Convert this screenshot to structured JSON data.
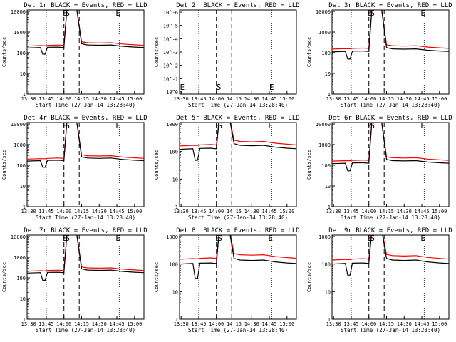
{
  "layout": {
    "rows": 3,
    "cols": 3
  },
  "common": {
    "xlabel": "Start Time (27-Jan-14 13:28:40)",
    "ylabel": "Counts/sec",
    "xticks": [
      "13:30",
      "13:45",
      "14:00",
      "14:15",
      "14:30",
      "14:45",
      "15:00"
    ],
    "marker_labels": [
      "E",
      "S",
      "E"
    ],
    "series": [
      {
        "name": "Events",
        "color": "#000000"
      },
      {
        "name": "LLD",
        "color": "#ff0000"
      }
    ]
  },
  "panels": [
    {
      "title": "Det 1r BLACK = Events, RED = LLD",
      "ylog_ticks": [
        "1",
        "10",
        "100",
        "1000",
        "10000"
      ],
      "has_data": true,
      "gap_depth": 0.5,
      "base_black": 170,
      "base_red": 210,
      "peak": 30000
    },
    {
      "title": "Det 2r BLACK = Events, RED = LLD",
      "ylog_ticks": [
        "10^0",
        "10^-1",
        "10^-2",
        "10^-3",
        "10^-4",
        "10^-5",
        "10^-6"
      ],
      "has_data": false
    },
    {
      "title": "Det 3r BLACK = Events, RED = LLD",
      "ylog_ticks": [
        "1",
        "10",
        "100",
        "1000",
        "10000"
      ],
      "has_data": true,
      "gap_depth": 0.45,
      "base_black": 110,
      "base_red": 150,
      "peak": 30000
    },
    {
      "title": "Det 4r BLACK = Events, RED = LLD",
      "ylog_ticks": [
        "1",
        "10",
        "100",
        "1000",
        "10000"
      ],
      "has_data": true,
      "gap_depth": 0.5,
      "base_black": 160,
      "base_red": 200,
      "peak": 30000
    },
    {
      "title": "Det 5r BLACK = Events, RED = LLD",
      "ylog_ticks": [
        "1",
        "10",
        "100",
        "1000"
      ],
      "has_data": true,
      "gap_depth": 0.4,
      "base_black": 120,
      "base_red": 160,
      "peak": 3000
    },
    {
      "title": "Det 6r BLACK = Events, RED = LLD",
      "ylog_ticks": [
        "1",
        "10",
        "100",
        "1000",
        "10000"
      ],
      "has_data": true,
      "gap_depth": 0.45,
      "base_black": 120,
      "base_red": 160,
      "peak": 30000
    },
    {
      "title": "Det 7r BLACK = Events, RED = LLD",
      "ylog_ticks": [
        "1",
        "10",
        "100",
        "1000",
        "10000"
      ],
      "has_data": true,
      "gap_depth": 0.45,
      "base_black": 170,
      "base_red": 210,
      "peak": 30000
    },
    {
      "title": "Det 8r BLACK = Events, RED = LLD",
      "ylog_ticks": [
        "1",
        "10",
        "100",
        "1000"
      ],
      "has_data": true,
      "gap_depth": 0.3,
      "base_black": 100,
      "base_red": 150,
      "peak": 3000
    },
    {
      "title": "Det 9r BLACK = Events, RED = LLD",
      "ylog_ticks": [
        "1",
        "10",
        "100",
        "1000"
      ],
      "has_data": true,
      "gap_depth": 0.4,
      "base_black": 100,
      "base_red": 140,
      "peak": 3000
    }
  ],
  "chart_data": {
    "type": "line",
    "x_unit": "time",
    "xlim": [
      "13:28:40",
      "15:08:00"
    ],
    "yscale": "log",
    "vertical_lines": {
      "dotted": [
        "13:45",
        "14:47"
      ],
      "dashed": [
        "14:00",
        "14:13"
      ]
    },
    "series_template": [
      {
        "name": "Events",
        "color": "#000000",
        "x": [
          "13:28:40",
          "13:40",
          "13:42",
          "13:44",
          "13:46",
          "13:55",
          "14:00",
          "14:03",
          "14:08",
          "14:10",
          "14:15",
          "14:20",
          "14:30",
          "14:40",
          "14:50",
          "15:00",
          "15:08"
        ],
        "rel": [
          1.0,
          1.05,
          0.5,
          0.5,
          1.08,
          1.1,
          1.05,
          25.0,
          25.0,
          40.0,
          1.6,
          1.4,
          1.35,
          1.4,
          1.2,
          1.1,
          1.05
        ]
      },
      {
        "name": "LLD",
        "color": "#ff0000",
        "x": [
          "13:28:40",
          "13:40",
          "13:42",
          "13:44",
          "13:46",
          "13:55",
          "14:00",
          "14:03",
          "14:08",
          "14:10",
          "14:15",
          "14:20",
          "14:30",
          "14:40",
          "14:50",
          "15:00",
          "15:08"
        ],
        "rel": [
          1.0,
          1.05,
          1.04,
          1.04,
          1.08,
          1.12,
          1.08,
          25.0,
          25.0,
          40.0,
          1.6,
          1.45,
          1.4,
          1.45,
          1.25,
          1.15,
          1.08
        ]
      }
    ]
  }
}
